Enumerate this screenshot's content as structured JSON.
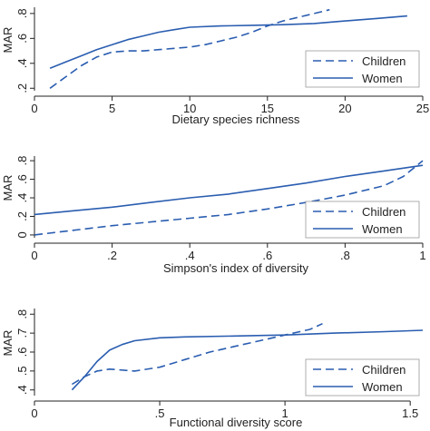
{
  "chart_data": [
    {
      "type": "line",
      "xlabel": "Dietary species richness",
      "ylabel": "MAR",
      "xlim": [
        0,
        25
      ],
      "ylim": [
        0.18,
        0.85
      ],
      "xticks": [
        0,
        5,
        10,
        15,
        20,
        25
      ],
      "xtick_labels": [
        "0",
        "5",
        "10",
        "15",
        "20",
        "25"
      ],
      "yticks": [
        0.2,
        0.4,
        0.6,
        0.8
      ],
      "ytick_labels": [
        ".2",
        ".4",
        ".6",
        ".8"
      ],
      "legend_position": "bottom-right",
      "series": [
        {
          "name": "Children",
          "style": "dashed",
          "x": [
            1,
            2,
            3,
            4,
            5,
            6,
            7,
            8,
            9,
            10,
            11,
            12,
            13,
            14,
            15,
            16,
            17,
            18,
            19
          ],
          "values": [
            0.2,
            0.29,
            0.38,
            0.45,
            0.49,
            0.5,
            0.5,
            0.51,
            0.52,
            0.53,
            0.55,
            0.58,
            0.61,
            0.65,
            0.7,
            0.74,
            0.77,
            0.8,
            0.83
          ]
        },
        {
          "name": "Women",
          "style": "solid",
          "x": [
            1,
            2,
            3,
            4,
            5,
            6,
            7,
            8,
            9,
            10,
            12,
            14,
            16,
            18,
            20,
            22,
            24
          ],
          "values": [
            0.36,
            0.41,
            0.46,
            0.51,
            0.55,
            0.59,
            0.62,
            0.65,
            0.67,
            0.69,
            0.7,
            0.705,
            0.71,
            0.72,
            0.74,
            0.76,
            0.78
          ]
        }
      ]
    },
    {
      "type": "line",
      "xlabel": "Simpson's index of diversity",
      "ylabel": "MAR",
      "xlim": [
        0,
        1
      ],
      "ylim": [
        -0.03,
        0.85
      ],
      "xticks": [
        0,
        0.2,
        0.4,
        0.6,
        0.8,
        1
      ],
      "xtick_labels": [
        "0",
        ".2",
        ".4",
        ".6",
        ".8",
        "1"
      ],
      "yticks": [
        0,
        0.2,
        0.4,
        0.6,
        0.8
      ],
      "ytick_labels": [
        "0",
        ".2",
        ".4",
        ".6",
        ".8"
      ],
      "legend_position": "bottom-right",
      "series": [
        {
          "name": "Children",
          "style": "dashed",
          "x": [
            0,
            0.1,
            0.2,
            0.3,
            0.4,
            0.5,
            0.6,
            0.7,
            0.8,
            0.9,
            0.95,
            1
          ],
          "values": [
            0,
            0.05,
            0.1,
            0.14,
            0.18,
            0.22,
            0.28,
            0.35,
            0.43,
            0.53,
            0.63,
            0.8
          ]
        },
        {
          "name": "Women",
          "style": "solid",
          "x": [
            0,
            0.1,
            0.2,
            0.3,
            0.4,
            0.5,
            0.6,
            0.7,
            0.8,
            0.9,
            1
          ],
          "values": [
            0.22,
            0.26,
            0.3,
            0.35,
            0.4,
            0.44,
            0.5,
            0.56,
            0.63,
            0.69,
            0.75
          ]
        }
      ]
    },
    {
      "type": "line",
      "xlabel": "Functional diversity score",
      "ylabel": "MAR",
      "xlim": [
        0,
        1.55
      ],
      "ylim": [
        0.37,
        0.83
      ],
      "xticks": [
        0,
        0.5,
        1,
        1.5
      ],
      "xtick_labels": [
        "0",
        ".5",
        "1",
        "1.5"
      ],
      "yticks": [
        0.4,
        0.5,
        0.6,
        0.7,
        0.8
      ],
      "ytick_labels": [
        ".4",
        ".5",
        ".6",
        ".7",
        ".8"
      ],
      "legend_position": "bottom-right",
      "series": [
        {
          "name": "Children",
          "style": "dashed",
          "x": [
            0.15,
            0.2,
            0.25,
            0.3,
            0.4,
            0.5,
            0.6,
            0.7,
            0.8,
            0.9,
            1.0,
            1.1,
            1.15
          ],
          "values": [
            0.43,
            0.47,
            0.5,
            0.51,
            0.5,
            0.52,
            0.56,
            0.6,
            0.63,
            0.66,
            0.69,
            0.72,
            0.75
          ]
        },
        {
          "name": "Women",
          "style": "solid",
          "x": [
            0.15,
            0.2,
            0.25,
            0.3,
            0.35,
            0.4,
            0.5,
            0.6,
            0.8,
            1.0,
            1.2,
            1.4,
            1.55
          ],
          "values": [
            0.4,
            0.47,
            0.55,
            0.61,
            0.64,
            0.66,
            0.675,
            0.68,
            0.685,
            0.69,
            0.7,
            0.708,
            0.715
          ]
        }
      ]
    }
  ]
}
